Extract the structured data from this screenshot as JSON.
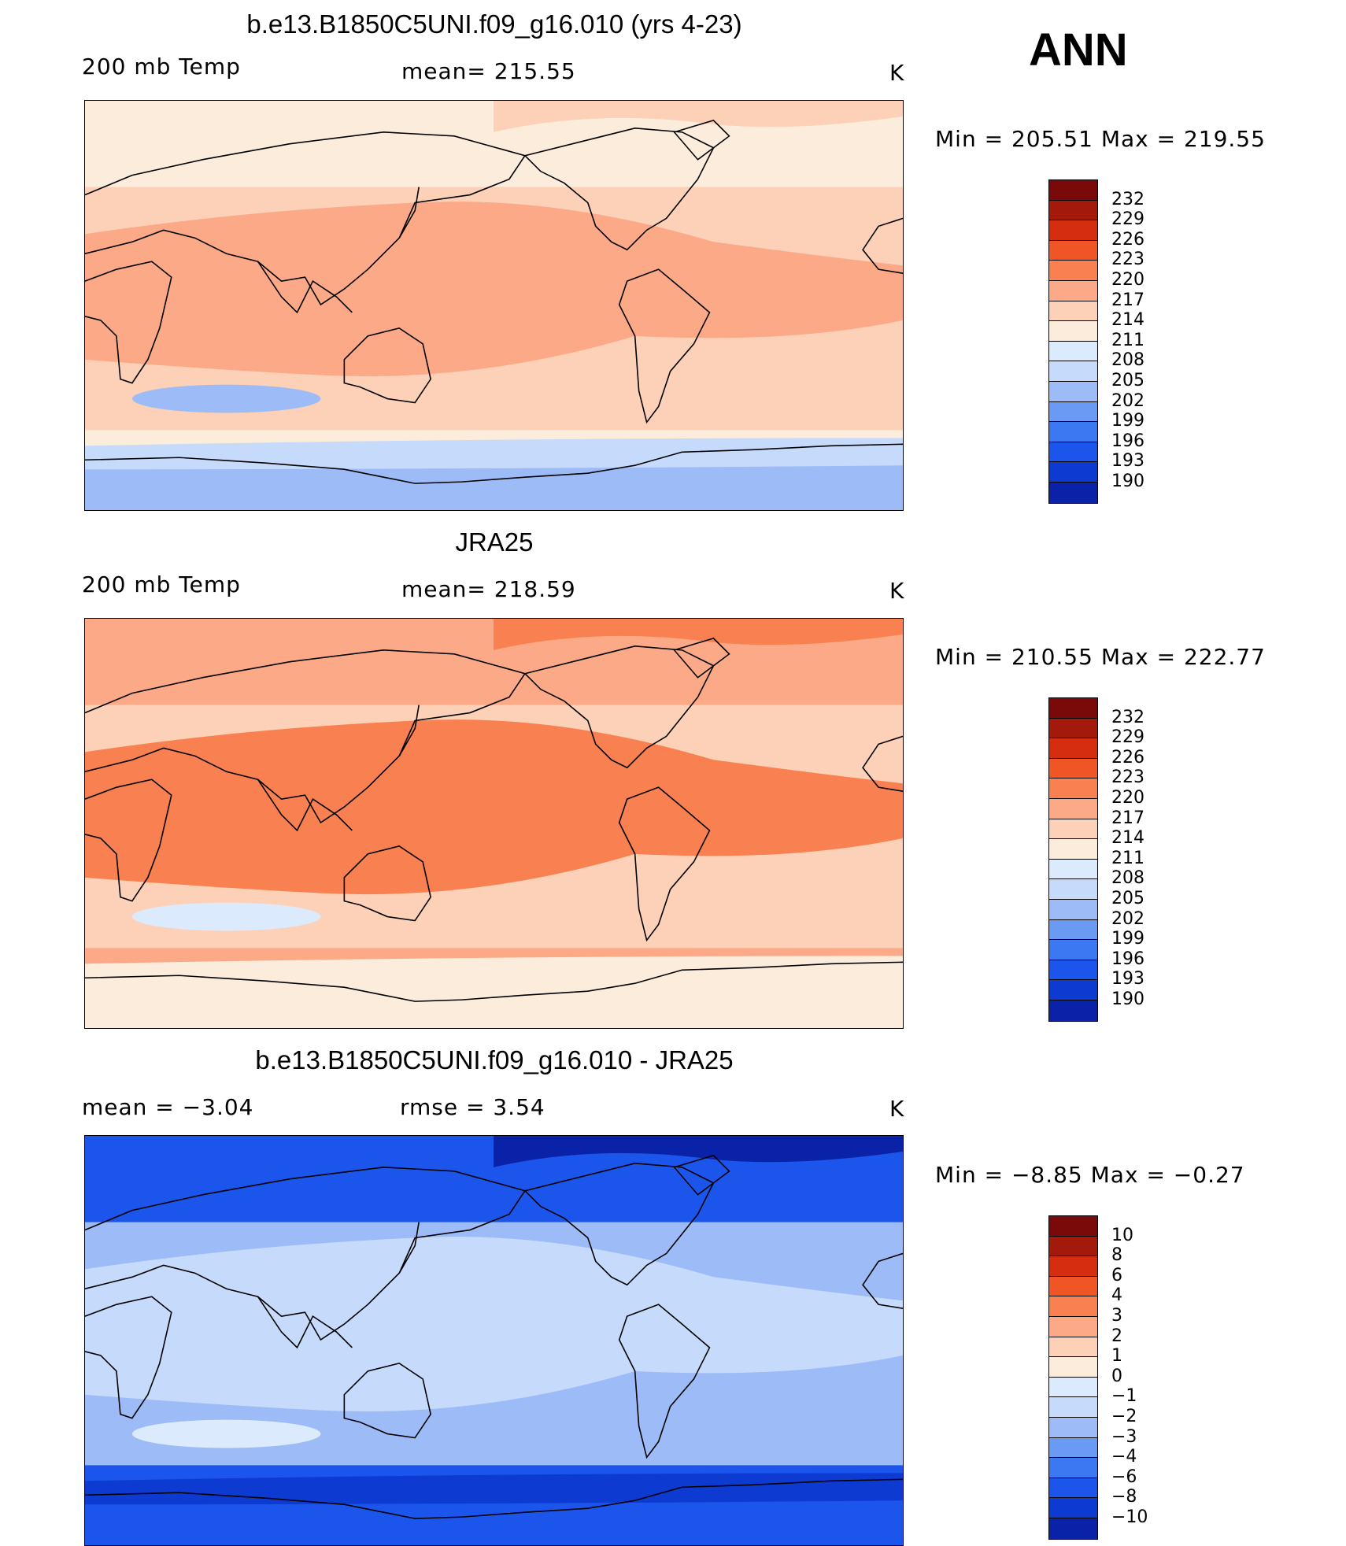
{
  "season": "ANN",
  "palette": [
    "#08006e",
    "#0a22a8",
    "#0d3ad0",
    "#1b55ec",
    "#3b78f2",
    "#6b9af4",
    "#9dbcf7",
    "#c6dafb",
    "#dbeafd",
    "#fbecdc",
    "#fdd1b8",
    "#fca987",
    "#f98050",
    "#f05525",
    "#d42d0f",
    "#a3190c",
    "#7a0a0a"
  ],
  "panels": [
    {
      "title": "b.e13.B1850C5UNI.f09_g16.010 (yrs 4-23)",
      "left_label": "200 mb Temp",
      "center_label": "mean=  215.55",
      "units": "K",
      "minmax": "Min  =  205.51  Max  =  219.55",
      "colorbar_labels": [
        "232",
        "229",
        "226",
        "223",
        "220",
        "217",
        "214",
        "211",
        "208",
        "205",
        "202",
        "199",
        "196",
        "193",
        "190"
      ],
      "map_colors": {
        "background": "#fbecdc",
        "tropics": "#fca987",
        "subtropics": "#fdd1b8",
        "antarctic": "#c6dafb",
        "pole": "#9dbcf7",
        "arctic_patch": "#fdd1b8",
        "cold_patch": "#9dbcf7"
      }
    },
    {
      "title": "JRA25",
      "left_label": "200 mb Temp",
      "center_label": "mean=  218.59",
      "units": "K",
      "minmax": "Min  =  210.55  Max  =  222.77",
      "colorbar_labels": [
        "232",
        "229",
        "226",
        "223",
        "220",
        "217",
        "214",
        "211",
        "208",
        "205",
        "202",
        "199",
        "196",
        "193",
        "190"
      ],
      "map_colors": {
        "background": "#fca987",
        "tropics": "#f98050",
        "subtropics": "#fdd1b8",
        "antarctic": "#fbecdc",
        "pole": "#fbecdc",
        "arctic_patch": "#f98050",
        "cold_patch": "#dbeafd"
      }
    },
    {
      "title": "b.e13.B1850C5UNI.f09_g16.010 - JRA25",
      "left_label": "mean  =     −3.04",
      "center_label": "rmse  =      3.54",
      "units": "K",
      "minmax": "Min  =    −8.85  Max  =    −0.27",
      "colorbar_labels": [
        "10",
        "8",
        "6",
        "4",
        "3",
        "2",
        "1",
        "0",
        "−1",
        "−2",
        "−3",
        "−4",
        "−6",
        "−8",
        "−10"
      ],
      "map_colors": {
        "background": "#1b55ec",
        "tropics": "#c6dafb",
        "subtropics": "#9dbcf7",
        "antarctic": "#0d3ad0",
        "pole": "#1b55ec",
        "arctic_patch": "#0a22a8",
        "cold_patch": "#dbeafd"
      }
    }
  ]
}
